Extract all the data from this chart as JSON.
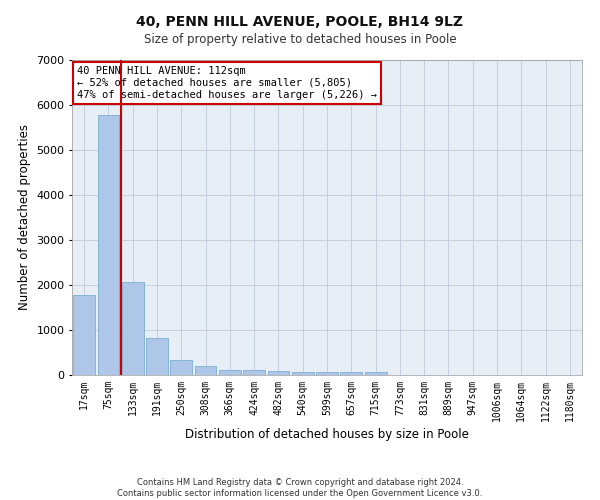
{
  "title1": "40, PENN HILL AVENUE, POOLE, BH14 9LZ",
  "title2": "Size of property relative to detached houses in Poole",
  "xlabel": "Distribution of detached houses by size in Poole",
  "ylabel": "Number of detached properties",
  "bar_color": "#aec6e8",
  "bar_edge_color": "#7aafd4",
  "vline_color": "#cc0000",
  "annotation_text": "40 PENN HILL AVENUE: 112sqm\n← 52% of detached houses are smaller (5,805)\n47% of semi-detached houses are larger (5,226) →",
  "annotation_box_color": "#ffffff",
  "annotation_box_edge": "#cc0000",
  "categories": [
    "17sqm",
    "75sqm",
    "133sqm",
    "191sqm",
    "250sqm",
    "308sqm",
    "366sqm",
    "424sqm",
    "482sqm",
    "540sqm",
    "599sqm",
    "657sqm",
    "715sqm",
    "773sqm",
    "831sqm",
    "889sqm",
    "947sqm",
    "1006sqm",
    "1064sqm",
    "1122sqm",
    "1180sqm"
  ],
  "values": [
    1780,
    5780,
    2060,
    820,
    340,
    195,
    120,
    110,
    95,
    65,
    60,
    60,
    65,
    0,
    0,
    0,
    0,
    0,
    0,
    0,
    0
  ],
  "ylim": [
    0,
    7000
  ],
  "yticks": [
    0,
    1000,
    2000,
    3000,
    4000,
    5000,
    6000,
    7000
  ],
  "background_color": "#e8eef5",
  "footer_line1": "Contains HM Land Registry data © Crown copyright and database right 2024.",
  "footer_line2": "Contains public sector information licensed under the Open Government Licence v3.0."
}
